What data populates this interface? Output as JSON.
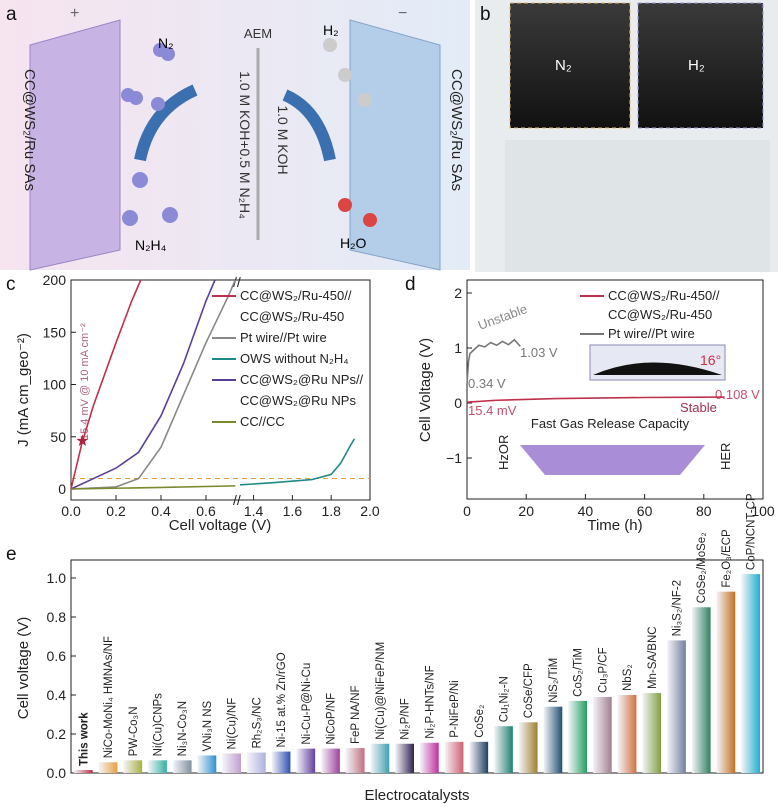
{
  "panel_a": {
    "label": "a",
    "anode_sign": "+",
    "cathode_sign": "−",
    "n2": "N₂",
    "n2h4": "N₂H₄",
    "h2": "H₂",
    "h2o": "H₂O",
    "aem": "AEM",
    "anolyte": "1.0 M KOH+0.5 M N₂H₄",
    "catholyte": "1.0 M KOH",
    "anode_label": "CC@WS₂/Ru SAs",
    "cathode_label": "CC@WS₂/Ru SAs"
  },
  "panel_b": {
    "label": "b",
    "left_gas": "N₂",
    "right_gas": "H₂"
  },
  "chart_data": [
    {
      "panel": "c",
      "type": "line",
      "xlabel": "Cell voltage (V)",
      "ylabel": "J (mA cm_geo⁻²)",
      "ylim": [
        -10,
        200
      ],
      "xlim": [
        0,
        2.0
      ],
      "axis_break": [
        0.75,
        1.33
      ],
      "xticks": [
        0.0,
        0.2,
        0.4,
        0.6,
        1.4,
        1.6,
        1.8,
        2.0
      ],
      "xtick_labels": [
        "0.0",
        "0.2",
        "0.4",
        "0.6",
        "1.4",
        "1.6",
        "1.8",
        "2.0"
      ],
      "yticks": [
        0,
        50,
        100,
        150,
        200
      ],
      "ytick_labels": [
        "0",
        "50",
        "100",
        "150",
        "200"
      ],
      "reference_line": 10,
      "annotation": "15.4 mV @ 10 mA cm⁻²",
      "marker": {
        "x": 0.0154,
        "y": 47
      },
      "legend": [
        "CC@WS₂/Ru-450//",
        "CC@WS₂/Ru-450",
        "Pt wire//Pt wire",
        "OWS without N₂H₄",
        "CC@WS₂@Ru NPs//",
        "CC@WS₂@Ru NPs",
        "CC//CC"
      ],
      "series": [
        {
          "name": "CC@WS₂/Ru-450//CC@WS₂/Ru-450",
          "color": "#c0304a",
          "x": [
            0,
            0.05,
            0.1,
            0.2,
            0.27,
            0.31
          ],
          "y": [
            0,
            45,
            80,
            140,
            180,
            200
          ]
        },
        {
          "name": "Pt wire//Pt wire",
          "color": "#888888",
          "x": [
            0,
            0.2,
            0.3,
            0.4,
            0.5,
            0.6,
            0.7,
            0.73
          ],
          "y": [
            0,
            2,
            10,
            40,
            90,
            140,
            185,
            200
          ]
        },
        {
          "name": "OWS without N₂H₄",
          "color": "#1f8a88",
          "x": [
            1.33,
            1.5,
            1.7,
            1.8,
            1.85,
            1.9,
            1.92
          ],
          "y": [
            4,
            6,
            9,
            14,
            25,
            42,
            48
          ]
        },
        {
          "name": "CC@WS₂@Ru NPs//CC@WS₂@Ru NPs",
          "color": "#5a3f9a",
          "x": [
            0,
            0.1,
            0.2,
            0.3,
            0.4,
            0.5,
            0.6,
            0.64
          ],
          "y": [
            0,
            10,
            20,
            35,
            70,
            120,
            180,
            200
          ]
        },
        {
          "name": "CC//CC",
          "color": "#7a8a2a",
          "x": [
            0,
            0.4,
            0.73
          ],
          "y": [
            0,
            1.5,
            3
          ]
        }
      ]
    },
    {
      "panel": "d",
      "type": "line",
      "xlabel": "Time (h)",
      "ylabel": "Cell Voltage (V)",
      "xlim": [
        0,
        100
      ],
      "ylim": [
        -1.7,
        2.25
      ],
      "xticks": [
        0,
        20,
        40,
        60,
        80,
        100
      ],
      "xtick_labels": [
        "0",
        "20",
        "40",
        "60",
        "80",
        "100"
      ],
      "yticks": [
        -1,
        0,
        1,
        2
      ],
      "ytick_labels": [
        "−1",
        "0",
        "1",
        "2"
      ],
      "legend": [
        "CC@WS₂/Ru-450//",
        "CC@WS₂/Ru-450",
        "Pt wire//Pt wire"
      ],
      "annotations": {
        "unstable": "Unstable",
        "pt_end": "1.03 V",
        "pt_start": "0.34 V",
        "ru_start": "15.4 mV",
        "ru_end": "0.108 V",
        "stable": "Stable",
        "angle": "16°",
        "gas": "Fast Gas Release Capacity",
        "hzor": "HzOR",
        "her": "HER"
      },
      "series": [
        {
          "name": "CC@WS₂/Ru-450//CC@WS₂/Ru-450",
          "color": "#c0304a",
          "x": [
            0,
            10,
            30,
            60,
            87
          ],
          "y": [
            0.0154,
            0.05,
            0.08,
            0.1,
            0.108
          ]
        },
        {
          "name": "Pt wire//Pt wire",
          "color": "#777777",
          "x": [
            0,
            0.5,
            1,
            2,
            4,
            6,
            8,
            10,
            12,
            14,
            16,
            18
          ],
          "y": [
            0.34,
            0.75,
            0.9,
            0.95,
            1.05,
            1.02,
            1.1,
            1.05,
            1.12,
            1.06,
            1.15,
            1.03
          ]
        }
      ]
    },
    {
      "panel": "e",
      "type": "bar",
      "xlabel": "Electrocatalysts",
      "ylabel": "Cell voltage (V)",
      "ylim": [
        0,
        1.1
      ],
      "yticks": [
        0,
        0.2,
        0.4,
        0.6,
        0.8,
        1.0
      ],
      "ytick_labels": [
        "0.0",
        "0.2",
        "0.4",
        "0.6",
        "0.8",
        "1.0"
      ],
      "categories": [
        "This work",
        "NiCo-MoNi₄ HMNAs/NF",
        "PW-Co₃N",
        "Ni(Cu)CNPs",
        "Ni₃N-Co₃N",
        "VNi₃N NS",
        "Ni(Cu)/NF",
        "Rh₂S₃/NC",
        "Ni-15 at.% Zn/rGO",
        "Ni-Cu-P@Ni-Cu",
        "NiCoP/NF",
        "FeP NA/NF",
        "Ni(Cu)@NiFeP/NM",
        "Ni₂P/NF",
        "Ni₂P-HNTs/NF",
        "P-NiFeP/Ni",
        "CoSe₂",
        "Cu₁Ni₂-N",
        "CoSe/CFP",
        "NiS₂/TiM",
        "CoS₂/TiM",
        "Cu₃P/CF",
        "NbS₂",
        "Mn-SA/BNC",
        "Ni₃S₂/NF-2",
        "CoSe₂/MoSe₂",
        "Fe₂O₃/ECP",
        "CoP/NCNT-CP"
      ],
      "values": [
        0.0154,
        0.055,
        0.065,
        0.065,
        0.065,
        0.09,
        0.1,
        0.105,
        0.11,
        0.125,
        0.125,
        0.128,
        0.15,
        0.15,
        0.155,
        0.16,
        0.16,
        0.24,
        0.26,
        0.34,
        0.37,
        0.39,
        0.4,
        0.41,
        0.68,
        0.85,
        0.93,
        1.02
      ],
      "colors": [
        "#c0304a",
        "#e8a040",
        "#a8b040",
        "#30b0a0",
        "#8090a0",
        "#3090d0",
        "#c0a0d0",
        "#b0b0e0",
        "#3050b0",
        "#6040a0",
        "#a040a0",
        "#c07080",
        "#40a0b0",
        "#302050",
        "#c030a0",
        "#d06070",
        "#204060",
        "#208070",
        "#a08030",
        "#205070",
        "#20a060",
        "#a08090",
        "#d07040",
        "#80a040",
        "#7080a0",
        "#308060",
        "#c07020",
        "#20b0d0"
      ]
    }
  ]
}
